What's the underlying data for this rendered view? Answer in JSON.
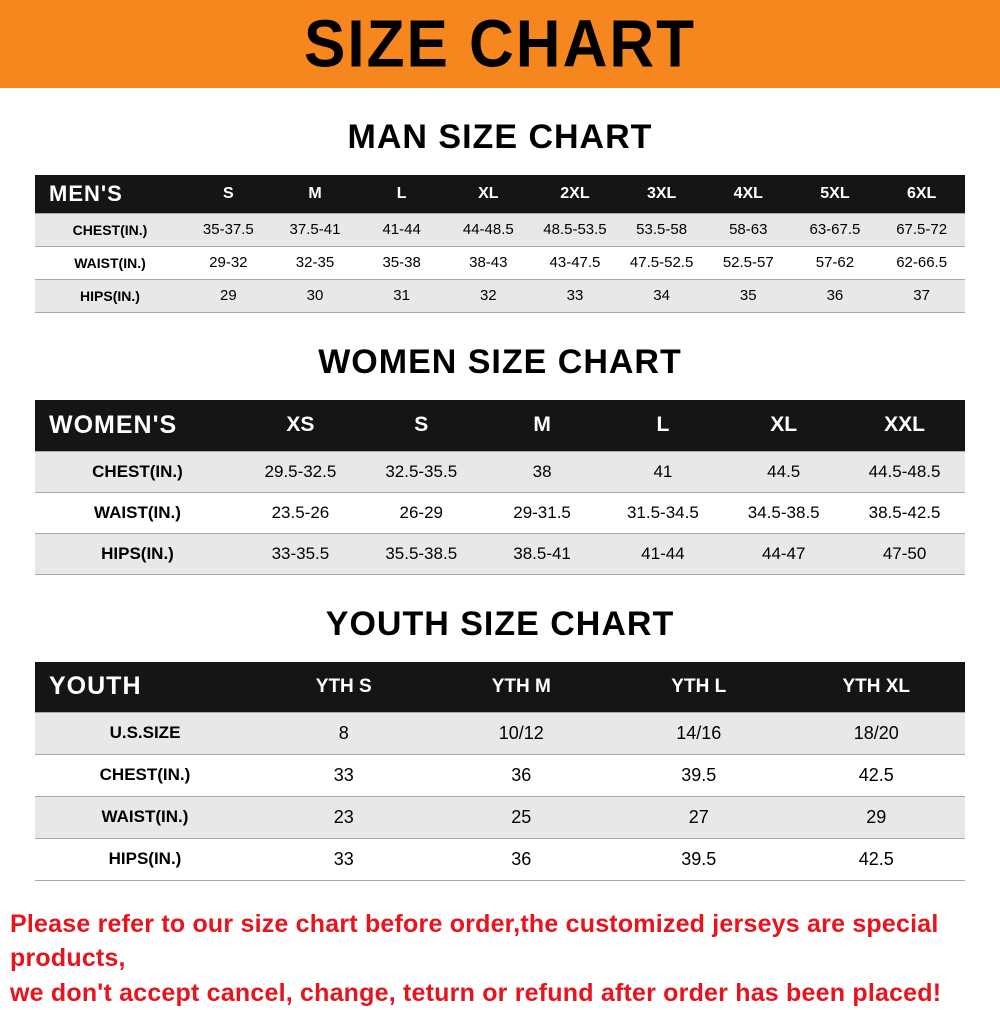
{
  "banner": {
    "title": "SIZE CHART",
    "bg_color": "#F6871F"
  },
  "colors": {
    "table_header_bg": "#151515",
    "row_stripe": "#e8e8e8",
    "footer_text": "#E8131C"
  },
  "sections": [
    {
      "heading": "MAN SIZE CHART",
      "table": {
        "corner_label": "MEN'S",
        "columns": [
          "S",
          "M",
          "L",
          "XL",
          "2XL",
          "3XL",
          "4XL",
          "5XL",
          "6XL"
        ],
        "rows": [
          {
            "label": "CHEST(IN.)",
            "values": [
              "35-37.5",
              "37.5-41",
              "41-44",
              "44-48.5",
              "48.5-53.5",
              "53.5-58",
              "58-63",
              "63-67.5",
              "67.5-72"
            ]
          },
          {
            "label": "WAIST(IN.)",
            "values": [
              "29-32",
              "32-35",
              "35-38",
              "38-43",
              "43-47.5",
              "47.5-52.5",
              "52.5-57",
              "57-62",
              "62-66.5"
            ]
          },
          {
            "label": "HIPS(IN.)",
            "values": [
              "29",
              "30",
              "31",
              "32",
              "33",
              "34",
              "35",
              "36",
              "37"
            ]
          }
        ]
      }
    },
    {
      "heading": "WOMEN SIZE CHART",
      "table": {
        "corner_label": "WOMEN'S",
        "columns": [
          "XS",
          "S",
          "M",
          "L",
          "XL",
          "XXL"
        ],
        "rows": [
          {
            "label": "CHEST(IN.)",
            "values": [
              "29.5-32.5",
              "32.5-35.5",
              "38",
              "41",
              "44.5",
              "44.5-48.5"
            ]
          },
          {
            "label": "WAIST(IN.)",
            "values": [
              "23.5-26",
              "26-29",
              "29-31.5",
              "31.5-34.5",
              "34.5-38.5",
              "38.5-42.5"
            ]
          },
          {
            "label": "HIPS(IN.)",
            "values": [
              "33-35.5",
              "35.5-38.5",
              "38.5-41",
              "41-44",
              "44-47",
              "47-50"
            ]
          }
        ]
      }
    },
    {
      "heading": "YOUTH SIZE CHART",
      "table": {
        "corner_label": "YOUTH",
        "columns": [
          "YTH S",
          "YTH M",
          "YTH L",
          "YTH XL"
        ],
        "rows": [
          {
            "label": "U.S.SIZE",
            "values": [
              "8",
              "10/12",
              "14/16",
              "18/20"
            ]
          },
          {
            "label": "CHEST(IN.)",
            "values": [
              "33",
              "36",
              "39.5",
              "42.5"
            ]
          },
          {
            "label": "WAIST(IN.)",
            "values": [
              "23",
              "25",
              "27",
              "29"
            ]
          },
          {
            "label": "HIPS(IN.)",
            "values": [
              "33",
              "36",
              "39.5",
              "42.5"
            ]
          }
        ]
      }
    }
  ],
  "footer": {
    "line1": "Please refer to our size chart before order,the customized jerseys are special products,",
    "line2": "we don't accept cancel, change, teturn or refund after order has been placed!"
  }
}
